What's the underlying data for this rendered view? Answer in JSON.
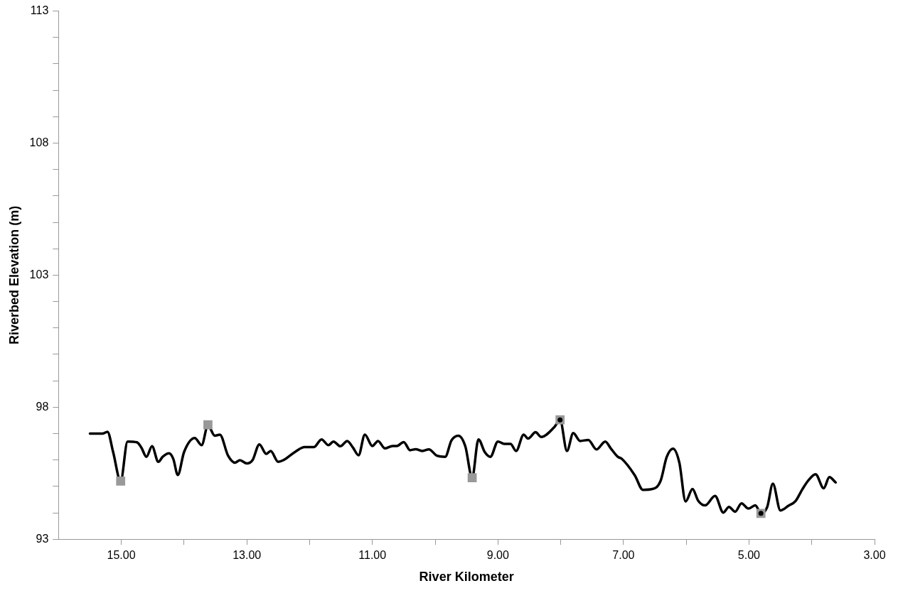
{
  "chart_data": {
    "type": "line",
    "xlabel": "River Kilometer",
    "ylabel": "Riverbed Elevation (m)",
    "xlim": [
      16,
      3
    ],
    "xticks": [
      {
        "value": 15,
        "label": "15.00"
      },
      {
        "value": 14,
        "label": null
      },
      {
        "value": 13,
        "label": "13.00"
      },
      {
        "value": 12,
        "label": null
      },
      {
        "value": 11,
        "label": "11.00"
      },
      {
        "value": 10,
        "label": null
      },
      {
        "value": 9,
        "label": "9.00"
      },
      {
        "value": 8,
        "label": null
      },
      {
        "value": 7,
        "label": "7.00"
      },
      {
        "value": 6,
        "label": null
      },
      {
        "value": 5,
        "label": "5.00"
      },
      {
        "value": 4,
        "label": null
      },
      {
        "value": 3,
        "label": "3.00"
      }
    ],
    "ylim": [
      93,
      113
    ],
    "yticks": [
      93,
      {
        "value": 94,
        "label": null
      },
      {
        "value": 95,
        "label": null
      },
      {
        "value": 96,
        "label": null
      },
      {
        "value": 97,
        "label": null
      },
      98,
      {
        "value": 99,
        "label": null
      },
      {
        "value": 100,
        "label": null
      },
      {
        "value": 101,
        "label": null
      },
      {
        "value": 102,
        "label": null
      },
      103,
      {
        "value": 104,
        "label": null
      },
      {
        "value": 105,
        "label": null
      },
      {
        "value": 106,
        "label": null
      },
      {
        "value": 107,
        "label": null
      },
      108,
      {
        "value": 109,
        "label": null
      },
      {
        "value": 110,
        "label": null
      },
      {
        "value": 111,
        "label": null
      },
      {
        "value": 112,
        "label": null
      },
      113
    ],
    "grid": false,
    "legend": false,
    "series": [
      {
        "type": "line",
        "color": "#000000",
        "marker": "none",
        "line_style": "solid",
        "x": [
          15.5,
          15.3,
          15.22,
          15.13,
          15.01,
          14.9,
          14.75,
          14.68,
          14.6,
          14.51,
          14.41,
          14.34,
          14.24,
          14.17,
          14.1,
          14.0,
          13.83,
          13.72,
          13.62,
          13.51,
          13.43,
          13.3,
          13.19,
          13.11,
          13.0,
          12.91,
          12.8,
          12.69,
          12.62,
          12.5,
          12.42,
          12.23,
          12.08,
          11.93,
          11.81,
          11.7,
          11.62,
          11.51,
          11.4,
          11.31,
          11.22,
          11.12,
          11.0,
          10.91,
          10.8,
          10.68,
          10.61,
          10.5,
          10.4,
          10.31,
          10.21,
          10.1,
          9.97,
          9.84,
          9.74,
          9.63,
          9.52,
          9.41,
          9.31,
          9.21,
          9.12,
          9.0,
          8.9,
          8.8,
          8.71,
          8.59,
          8.52,
          8.4,
          8.31,
          8.1,
          8.01,
          7.9,
          7.8,
          7.69,
          7.56,
          7.43,
          7.29,
          7.2,
          7.09,
          7.03,
          6.82,
          6.69,
          6.54,
          6.41,
          6.31,
          6.21,
          6.11,
          6.01,
          5.9,
          5.81,
          5.7,
          5.54,
          5.41,
          5.32,
          5.22,
          5.12,
          5.01,
          4.9,
          4.81,
          4.71,
          4.62,
          4.5,
          4.37,
          4.26,
          4.15,
          4.05,
          3.94,
          3.81,
          3.72,
          3.62
        ],
        "values": [
          97.0,
          97.0,
          97.07,
          96.3,
          95.2,
          96.7,
          96.67,
          96.47,
          96.12,
          96.52,
          95.93,
          96.12,
          96.25,
          96.03,
          95.43,
          96.3,
          96.83,
          96.56,
          97.31,
          96.92,
          96.96,
          96.17,
          95.9,
          95.99,
          95.87,
          95.99,
          96.59,
          96.23,
          96.34,
          95.93,
          95.99,
          96.31,
          96.49,
          96.49,
          96.78,
          96.56,
          96.7,
          96.52,
          96.72,
          96.47,
          96.18,
          96.96,
          96.53,
          96.72,
          96.44,
          96.53,
          96.53,
          96.68,
          96.37,
          96.41,
          96.34,
          96.4,
          96.16,
          96.12,
          96.74,
          96.92,
          96.52,
          95.33,
          96.78,
          96.3,
          96.12,
          96.7,
          96.61,
          96.61,
          96.34,
          96.96,
          96.81,
          97.05,
          96.87,
          97.25,
          97.52,
          96.34,
          97.02,
          96.72,
          96.76,
          96.4,
          96.7,
          96.43,
          96.12,
          96.05,
          95.42,
          94.87,
          94.9,
          95.2,
          96.12,
          96.43,
          95.9,
          94.43,
          94.9,
          94.46,
          94.28,
          94.64,
          94.01,
          94.22,
          94.04,
          94.36,
          94.16,
          94.28,
          93.98,
          94.22,
          95.1,
          94.09,
          94.27,
          94.44,
          94.89,
          95.24,
          95.46,
          94.93,
          95.35,
          95.15
        ]
      },
      {
        "type": "scatter",
        "color": "#999999",
        "marker": "square",
        "x": [
          15.01,
          13.62,
          9.41,
          8.01,
          4.81
        ],
        "values": [
          95.2,
          97.33,
          95.33,
          97.52,
          93.98
        ]
      },
      {
        "type": "scatter",
        "color": "#000000",
        "marker": "circle",
        "x": [
          8.01,
          4.81
        ],
        "values": [
          97.52,
          93.98
        ]
      }
    ]
  }
}
